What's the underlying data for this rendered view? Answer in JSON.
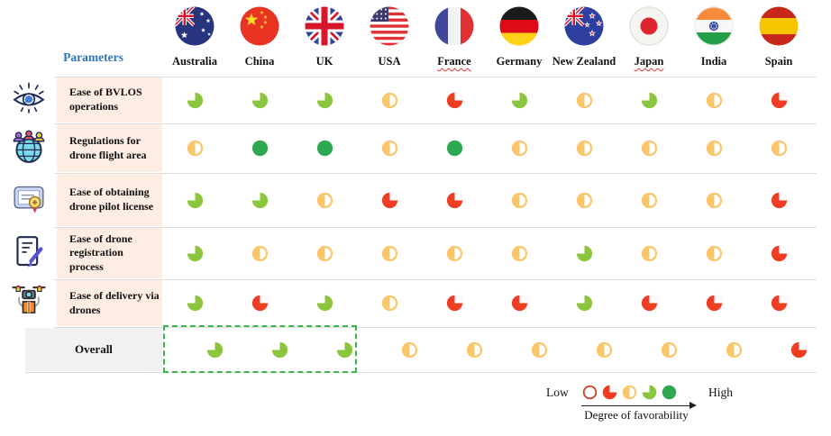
{
  "chart_data": {
    "type": "table",
    "title": "Degree of favorability of drone regulations by country",
    "columns": [
      "Australia",
      "China",
      "UK",
      "USA",
      "France",
      "Germany",
      "New Zealand",
      "Japan",
      "India",
      "Spain"
    ],
    "row_labels": [
      "Ease of BVLOS operations",
      "Regulations for drone flight area",
      "Ease of obtaining drone pilot license",
      "Ease of drone registration process",
      "Ease of delivery via drones",
      "Overall"
    ],
    "scale": {
      "1": "empty red outline (lowest)",
      "2": "red quarter",
      "3": "yellow half",
      "4": "green three-quarter",
      "5": "full green (highest)"
    },
    "values": [
      [
        4,
        4,
        4,
        3,
        2,
        4,
        3,
        4,
        3,
        2
      ],
      [
        3,
        5,
        5,
        3,
        5,
        3,
        3,
        3,
        3,
        3
      ],
      [
        4,
        4,
        3,
        2,
        2,
        3,
        3,
        3,
        3,
        2
      ],
      [
        4,
        3,
        3,
        3,
        3,
        3,
        4,
        3,
        3,
        2
      ],
      [
        4,
        2,
        4,
        3,
        2,
        2,
        4,
        2,
        2,
        2
      ],
      [
        4,
        4,
        4,
        3,
        3,
        3,
        3,
        3,
        3,
        2
      ]
    ],
    "legend_position": "bottom-right",
    "annotation": "dashed green box highlights Overall result for Australia, China and UK"
  },
  "header": {
    "parameters_label": "Parameters",
    "columns": [
      {
        "label": "Australia",
        "flag": "australia-flag-icon"
      },
      {
        "label": "China",
        "flag": "china-flag-icon"
      },
      {
        "label": "UK",
        "flag": "uk-flag-icon"
      },
      {
        "label": "USA",
        "flag": "usa-flag-icon"
      },
      {
        "label": "France",
        "flag": "france-flag-icon",
        "spellcheck_underline": true
      },
      {
        "label": "Germany",
        "flag": "germany-flag-icon"
      },
      {
        "label": "New Zealand",
        "flag": "new-zealand-flag-icon"
      },
      {
        "label": "Japan",
        "flag": "japan-flag-icon",
        "spellcheck_underline": true
      },
      {
        "label": "India",
        "flag": "india-flag-icon"
      },
      {
        "label": "Spain",
        "flag": "spain-flag-icon"
      }
    ]
  },
  "rows": [
    {
      "icon": "eye-icon",
      "label": "Ease of BVLOS operations",
      "cells": [
        "three-quarter-green",
        "three-quarter-green",
        "three-quarter-green",
        "half-yellow",
        "quarter-red",
        "three-quarter-green",
        "half-yellow",
        "three-quarter-green",
        "half-yellow",
        "quarter-red"
      ]
    },
    {
      "icon": "globe-people-icon",
      "label": "Regulations for drone flight area",
      "cells": [
        "half-yellow",
        "full-green",
        "full-green",
        "half-yellow",
        "full-green",
        "half-yellow",
        "half-yellow",
        "half-yellow",
        "half-yellow",
        "half-yellow"
      ]
    },
    {
      "icon": "certificate-icon",
      "label": "Ease of obtaining drone pilot license",
      "cells": [
        "three-quarter-green",
        "three-quarter-green",
        "half-yellow",
        "quarter-red",
        "quarter-red",
        "half-yellow",
        "half-yellow",
        "half-yellow",
        "half-yellow",
        "quarter-red"
      ]
    },
    {
      "icon": "document-pen-icon",
      "label": "Ease of drone registration process",
      "cells": [
        "three-quarter-green",
        "half-yellow",
        "half-yellow",
        "half-yellow",
        "half-yellow",
        "half-yellow",
        "three-quarter-green",
        "half-yellow",
        "half-yellow",
        "quarter-red"
      ]
    },
    {
      "icon": "delivery-drone-icon",
      "label": "Ease of delivery via drones",
      "cells": [
        "three-quarter-green",
        "quarter-red",
        "three-quarter-green",
        "half-yellow",
        "quarter-red",
        "quarter-red",
        "three-quarter-green",
        "quarter-red",
        "quarter-red",
        "quarter-red"
      ]
    },
    {
      "icon": null,
      "label": "Overall",
      "overall": true,
      "cells": [
        "three-quarter-green",
        "three-quarter-green",
        "three-quarter-green",
        "half-yellow",
        "half-yellow",
        "half-yellow",
        "half-yellow",
        "half-yellow",
        "half-yellow",
        "quarter-red"
      ]
    }
  ],
  "annotation": {
    "overall_highlight": {
      "style": "dashed-green-box",
      "columns": [
        "Australia",
        "China",
        "UK"
      ]
    }
  },
  "legend": {
    "low_label": "Low",
    "high_label": "High",
    "axis_label": "Degree of favorability",
    "levels": [
      "empty",
      "quarter-red",
      "half-yellow",
      "three-quarter-green",
      "full-green"
    ]
  },
  "colors": {
    "red": "#EE3D23",
    "red_outline": "#C9452B",
    "yellow": "#FAC66B",
    "light_green": "#8CC63F",
    "dark_green": "#2EA94F",
    "header_blue": "#2E75B6",
    "row_band": "#FDEDE3",
    "overall_band": "#F1F1F1",
    "highlight_green": "#3CB54A"
  }
}
